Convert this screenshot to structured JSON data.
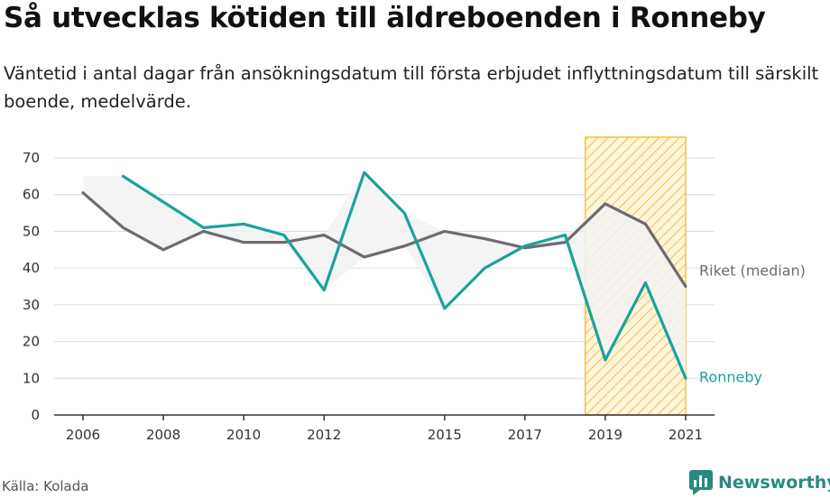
{
  "title": "Så utvecklas kötiden till äldreboenden i Ronneby",
  "subtitle": "Väntetid i antal dagar från ansökningsdatum till första erbjudet inflyttningsdatum till särskilt boende, medelvärde.",
  "source": "Källa: Kolada",
  "brand": "Newsworthy",
  "colors": {
    "ronneby": "#1aa39a",
    "riket": "#6e6b72",
    "highlight": "#f2c24a",
    "brand": "#2a8a80"
  },
  "chart_data": {
    "type": "line",
    "x_ticks": [
      2006,
      2008,
      2010,
      2012,
      2015,
      2017,
      2019,
      2021
    ],
    "y_ticks": [
      0,
      10,
      20,
      30,
      40,
      50,
      60,
      70
    ],
    "xlim": [
      2006,
      2021
    ],
    "ylim": [
      0,
      70
    ],
    "grid": "horizontal",
    "highlight_range": [
      2018.5,
      2021
    ],
    "series": [
      {
        "name": "Riket (median)",
        "color": "#6e6b72",
        "points": [
          [
            2006,
            60.5
          ],
          [
            2007,
            51
          ],
          [
            2008,
            45
          ],
          [
            2009,
            50
          ],
          [
            2010,
            47
          ],
          [
            2011,
            47
          ],
          [
            2012,
            49
          ],
          [
            2013,
            43
          ],
          [
            2014,
            46
          ],
          [
            2015,
            50
          ],
          [
            2016,
            48
          ],
          [
            2017,
            45.5
          ],
          [
            2018,
            47
          ],
          [
            2019,
            57.5
          ],
          [
            2020,
            52
          ],
          [
            2021,
            35
          ]
        ]
      },
      {
        "name": "Ronneby",
        "color": "#1aa39a",
        "points": [
          [
            2007,
            65
          ],
          [
            2008,
            58
          ],
          [
            2009,
            51
          ],
          [
            2010,
            52
          ],
          [
            2011,
            49
          ],
          [
            2012,
            34
          ],
          [
            2013,
            66
          ],
          [
            2014,
            55
          ],
          [
            2015,
            29
          ],
          [
            2016,
            40
          ],
          [
            2017,
            46
          ],
          [
            2018,
            49
          ],
          [
            2019,
            15
          ],
          [
            2020,
            36
          ],
          [
            2021,
            10
          ]
        ]
      }
    ]
  }
}
